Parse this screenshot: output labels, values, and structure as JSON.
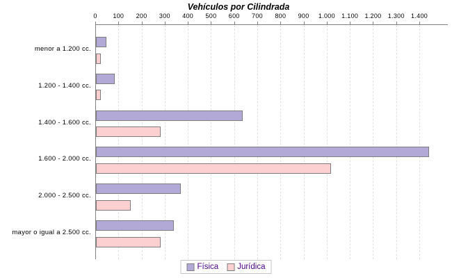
{
  "title": "Vehículos por Cilindrada",
  "chart_data": {
    "type": "bar",
    "orientation": "horizontal",
    "title": "Vehículos por Cilindrada",
    "categories": [
      "menor a 1.200 cc.",
      "1.200 - 1.400 cc.",
      "1.400 - 1.600 cc.",
      "1.600 - 2.000 cc.",
      "2.000 - 2.500 cc.",
      "mayor o igual a 2.500 cc."
    ],
    "series": [
      {
        "name": "Física",
        "key": "fisica",
        "color": "#b3a9d6",
        "values": [
          45,
          80,
          635,
          1440,
          365,
          335
        ]
      },
      {
        "name": "Jurídica",
        "key": "juridica",
        "color": "#fcd0d0",
        "values": [
          20,
          20,
          280,
          1015,
          150,
          280
        ]
      }
    ],
    "x_ticks": [
      0,
      100,
      200,
      300,
      400,
      500,
      600,
      700,
      800,
      900,
      1000,
      1100,
      1200,
      1300,
      1400
    ],
    "x_tick_labels": [
      "0",
      "100",
      "200",
      "300",
      "400",
      "500",
      "600",
      "700",
      "800",
      "900",
      "1.000",
      "1.100",
      "1.200",
      "1.300",
      "1.400"
    ],
    "xlim": [
      0,
      1400
    ],
    "plot_xmax": 1520,
    "grid": "vertical-dashed",
    "legend_position": "bottom"
  },
  "colors": {
    "bar_border": "#7d7d7d",
    "axis": "#808080",
    "gridline": "#e1e1e1",
    "title_text": "#000000",
    "label_text": "#000000",
    "legend_text": "#4b0082",
    "legend_border": "#c6c6c6",
    "background": "#ffffff"
  }
}
